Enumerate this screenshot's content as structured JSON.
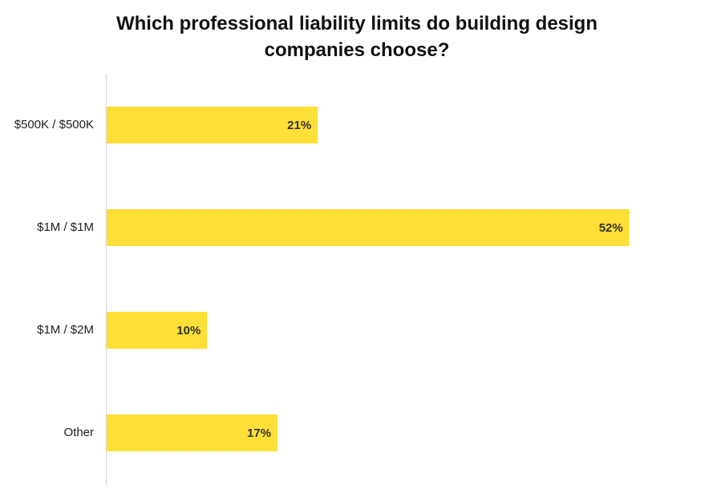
{
  "chart_data": {
    "type": "bar",
    "orientation": "horizontal",
    "title": "Which professional liability limits do building design companies choose?",
    "categories": [
      "$500K / $500K",
      "$1M / $1M",
      "$1M / $2M",
      "Other"
    ],
    "values": [
      21,
      52,
      10,
      17
    ],
    "value_labels": [
      "21%",
      "52%",
      "10%",
      "17%"
    ],
    "color": "#fedf37",
    "xlim": [
      0,
      60
    ]
  }
}
